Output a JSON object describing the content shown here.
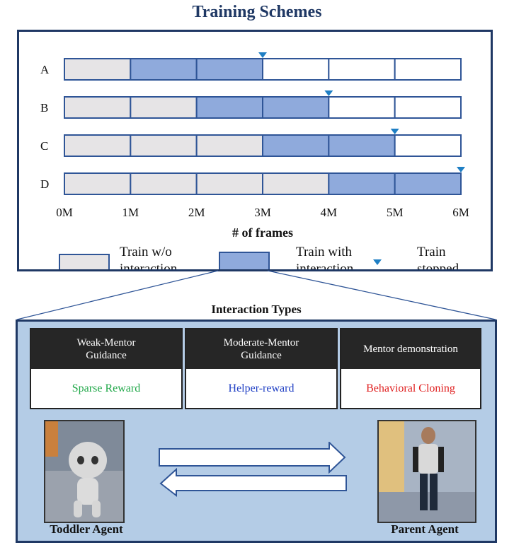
{
  "title": "Training Schemes",
  "chart_data": {
    "type": "gantt",
    "xlabel": "# of frames",
    "x_ticks": [
      "0M",
      "1M",
      "2M",
      "3M",
      "4M",
      "5M",
      "6M"
    ],
    "rows": [
      {
        "label": "A",
        "without_interaction_until": 1,
        "with_interaction_until": 3,
        "stopped_at": 3
      },
      {
        "label": "B",
        "without_interaction_until": 2,
        "with_interaction_until": 4,
        "stopped_at": 4
      },
      {
        "label": "C",
        "without_interaction_until": 3,
        "with_interaction_until": 5,
        "stopped_at": 5
      },
      {
        "label": "D",
        "without_interaction_until": 4,
        "with_interaction_until": 6,
        "stopped_at": 6
      }
    ],
    "xlim": [
      0,
      6
    ],
    "colors": {
      "without": "#e6e4e6",
      "with": "#8faadc",
      "border": "#2f5597",
      "marker": "#1f7fc4"
    }
  },
  "legend": {
    "without": "Train w/o\ninteraction",
    "with": "Train with\ninteraction",
    "stopped": "Train\nstopped"
  },
  "interaction": {
    "title": "Interaction Types",
    "cards": [
      {
        "header": "Weak-Mentor\nGuidance",
        "body": "Sparse Reward",
        "color": "#22a84a"
      },
      {
        "header": "Moderate-Mentor\nGuidance",
        "body": "Helper-reward",
        "color": "#1f3fc4"
      },
      {
        "header": "Mentor demonstration",
        "body": "Behavioral Cloning",
        "color": "#e02020"
      }
    ],
    "toddler_label": "Toddler Agent",
    "parent_label": "Parent Agent"
  }
}
